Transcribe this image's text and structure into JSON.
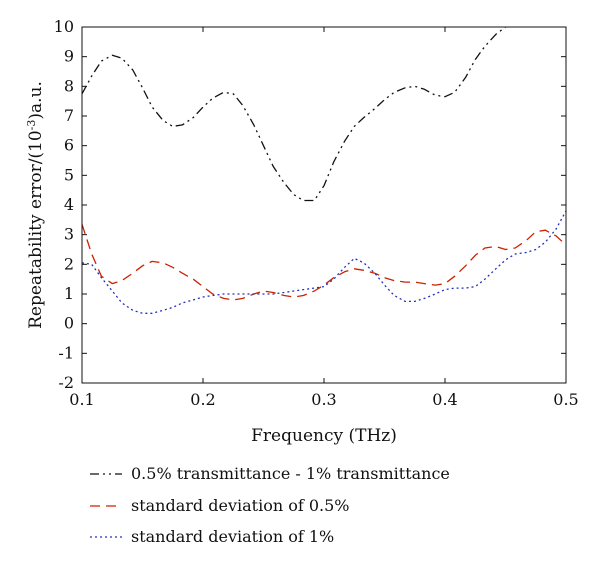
{
  "chart_data": {
    "type": "line",
    "xlabel": "Frequency (THz)",
    "ylabel": {
      "prefix": "Repeatability error/(10",
      "exponent": "-3",
      "suffix": ")a.u."
    },
    "xlim": [
      0.1,
      0.5
    ],
    "ylim": [
      -2,
      10
    ],
    "x_ticks": [
      0.1,
      0.2,
      0.3,
      0.4,
      0.5
    ],
    "y_ticks": [
      -2,
      -1,
      0,
      1,
      2,
      3,
      4,
      5,
      6,
      7,
      8,
      9,
      10
    ],
    "x_tick_labels": [
      "0.1",
      "0.2",
      "0.3",
      "0.4",
      "0.5"
    ],
    "y_tick_labels": [
      "-2",
      "-1",
      "0",
      "1",
      "2",
      "3",
      "4",
      "5",
      "6",
      "7",
      "8",
      "9",
      "10"
    ],
    "grid": false,
    "legend_position": "bottom-left",
    "series": [
      {
        "name": "0.5% transmittance - 1% transmittance",
        "color": "#111111",
        "dash": "dashdotdot",
        "x": [
          0.1,
          0.108,
          0.116,
          0.125,
          0.133,
          0.142,
          0.15,
          0.158,
          0.167,
          0.175,
          0.183,
          0.192,
          0.2,
          0.208,
          0.217,
          0.225,
          0.233,
          0.242,
          0.25,
          0.258,
          0.267,
          0.275,
          0.283,
          0.292,
          0.3,
          0.308,
          0.317,
          0.325,
          0.333,
          0.342,
          0.35,
          0.358,
          0.367,
          0.375,
          0.383,
          0.392,
          0.4,
          0.408,
          0.417,
          0.425,
          0.433,
          0.442,
          0.45
        ],
        "values": [
          7.75,
          8.35,
          8.85,
          9.05,
          8.95,
          8.55,
          7.95,
          7.3,
          6.85,
          6.65,
          6.7,
          6.95,
          7.3,
          7.6,
          7.8,
          7.75,
          7.35,
          6.7,
          6.0,
          5.3,
          4.75,
          4.35,
          4.15,
          4.15,
          4.65,
          5.45,
          6.15,
          6.65,
          6.95,
          7.25,
          7.55,
          7.8,
          7.95,
          8.0,
          7.9,
          7.7,
          7.65,
          7.8,
          8.3,
          8.9,
          9.35,
          9.75,
          10.0
        ]
      },
      {
        "name": "standard deviation of 0.5%",
        "color": "#cc2200",
        "dash": "dashed",
        "x": [
          0.1,
          0.108,
          0.116,
          0.125,
          0.133,
          0.142,
          0.15,
          0.158,
          0.167,
          0.175,
          0.183,
          0.192,
          0.2,
          0.208,
          0.217,
          0.225,
          0.233,
          0.242,
          0.25,
          0.258,
          0.267,
          0.275,
          0.283,
          0.292,
          0.3,
          0.308,
          0.317,
          0.325,
          0.333,
          0.342,
          0.35,
          0.358,
          0.367,
          0.375,
          0.383,
          0.392,
          0.4,
          0.408,
          0.417,
          0.425,
          0.433,
          0.442,
          0.45,
          0.458,
          0.467,
          0.475,
          0.483,
          0.492,
          0.5
        ],
        "values": [
          3.35,
          2.35,
          1.6,
          1.35,
          1.45,
          1.7,
          1.95,
          2.1,
          2.05,
          1.9,
          1.7,
          1.5,
          1.25,
          1.0,
          0.85,
          0.8,
          0.85,
          1.0,
          1.1,
          1.05,
          0.95,
          0.9,
          0.95,
          1.1,
          1.3,
          1.55,
          1.75,
          1.85,
          1.8,
          1.7,
          1.55,
          1.45,
          1.4,
          1.4,
          1.35,
          1.3,
          1.35,
          1.6,
          1.95,
          2.3,
          2.55,
          2.6,
          2.5,
          2.55,
          2.8,
          3.1,
          3.15,
          2.95,
          2.65
        ]
      },
      {
        "name": "standard deviation of 1%",
        "color": "#2233bb",
        "dash": "dotted",
        "x": [
          0.1,
          0.108,
          0.116,
          0.125,
          0.133,
          0.142,
          0.15,
          0.158,
          0.167,
          0.175,
          0.183,
          0.192,
          0.2,
          0.208,
          0.217,
          0.225,
          0.233,
          0.242,
          0.25,
          0.258,
          0.267,
          0.275,
          0.283,
          0.292,
          0.3,
          0.308,
          0.317,
          0.325,
          0.333,
          0.342,
          0.35,
          0.358,
          0.367,
          0.375,
          0.383,
          0.392,
          0.4,
          0.408,
          0.417,
          0.425,
          0.433,
          0.442,
          0.45,
          0.458,
          0.467,
          0.475,
          0.483,
          0.492,
          0.5
        ],
        "values": [
          2.05,
          2.0,
          1.55,
          1.1,
          0.7,
          0.45,
          0.35,
          0.35,
          0.45,
          0.55,
          0.7,
          0.8,
          0.9,
          0.95,
          1.0,
          1.0,
          1.0,
          1.0,
          1.0,
          1.0,
          1.05,
          1.1,
          1.15,
          1.2,
          1.25,
          1.5,
          1.9,
          2.2,
          2.05,
          1.7,
          1.3,
          0.95,
          0.75,
          0.75,
          0.85,
          1.0,
          1.15,
          1.2,
          1.2,
          1.25,
          1.5,
          1.85,
          2.15,
          2.35,
          2.4,
          2.5,
          2.75,
          3.2,
          3.8
        ]
      }
    ]
  }
}
